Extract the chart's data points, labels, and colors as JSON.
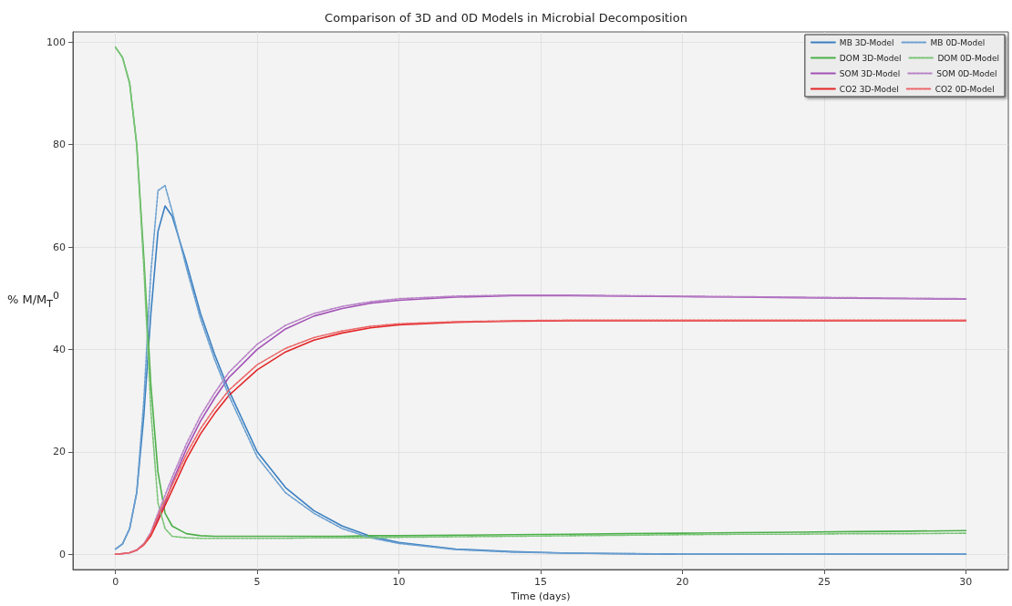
{
  "chart_data": {
    "type": "line",
    "title": "Comparison of 3D and 0D Models in Microbial Decomposition",
    "xlabel": "Time (days)",
    "ylabel": "% M/M$_{T}$$^{0}$",
    "x": [
      0,
      0.25,
      0.5,
      0.75,
      1,
      1.25,
      1.5,
      1.75,
      2,
      2.5,
      3,
      3.5,
      4,
      5,
      6,
      7,
      8,
      9,
      10,
      12,
      14,
      16,
      18,
      20,
      22,
      24,
      26,
      28,
      30
    ],
    "xlim": [
      -1.5,
      31.5
    ],
    "xticks": [
      0,
      5,
      10,
      15,
      20,
      25,
      30
    ],
    "ylim": [
      -3,
      102
    ],
    "yticks": [
      0,
      20,
      40,
      60,
      80,
      100
    ],
    "grid": true,
    "legend": "top right",
    "marker": "none",
    "series": [
      {
        "name": "MB 3D-Model",
        "color": "#3a7fc1",
        "line_style": "solid",
        "values": [
          1,
          2,
          5,
          12,
          27,
          47,
          63,
          68,
          66,
          57,
          47,
          39,
          32,
          20,
          13,
          8.5,
          5.5,
          3.5,
          2.3,
          1,
          0.5,
          0.2,
          0.1,
          0,
          0,
          0,
          0,
          0,
          0
        ]
      },
      {
        "name": "MB 0D-Model",
        "color": "#6a9fd0",
        "line_style": "dashed",
        "values": [
          1,
          2,
          5,
          12,
          30,
          55,
          71,
          72,
          67,
          56,
          46,
          38,
          31,
          19,
          12,
          8,
          5,
          3.2,
          2.1,
          0.9,
          0.4,
          0.2,
          0.1,
          0,
          0,
          0,
          0,
          0,
          0
        ]
      },
      {
        "name": "DOM 3D-Model",
        "color": "#4daf4a",
        "line_style": "solid",
        "values": [
          99,
          97,
          92,
          80,
          58,
          33,
          16,
          8,
          5.5,
          4,
          3.6,
          3.5,
          3.5,
          3.5,
          3.5,
          3.5,
          3.5,
          3.6,
          3.6,
          3.7,
          3.8,
          3.9,
          4,
          4.1,
          4.2,
          4.3,
          4.4,
          4.5,
          4.6
        ]
      },
      {
        "name": "DOM 0D-Model",
        "color": "#79c476",
        "line_style": "dashed",
        "values": [
          99,
          97,
          92,
          80,
          56,
          28,
          10,
          5,
          3.5,
          3.2,
          3.1,
          3.1,
          3.1,
          3.1,
          3.1,
          3.2,
          3.2,
          3.2,
          3.3,
          3.4,
          3.5,
          3.6,
          3.7,
          3.8,
          3.9,
          3.9,
          4,
          4,
          4.1
        ]
      },
      {
        "name": "SOM 3D-Model",
        "color": "#a252b5",
        "line_style": "solid",
        "values": [
          null,
          null,
          0.3,
          0.8,
          2,
          4,
          7,
          10,
          14,
          20.5,
          26,
          30.5,
          34.5,
          40,
          44,
          46.5,
          48,
          49,
          49.6,
          50.2,
          50.5,
          50.5,
          50.4,
          50.3,
          50.2,
          50.1,
          50,
          49.9,
          49.8
        ]
      },
      {
        "name": "SOM 0D-Model",
        "color": "#b882c6",
        "line_style": "dashed",
        "values": [
          0,
          0.1,
          0.3,
          0.8,
          2,
          4.3,
          8,
          11.5,
          15,
          21.5,
          27,
          31.5,
          35.5,
          41,
          44.7,
          47,
          48.4,
          49.3,
          49.9,
          50.4,
          50.6,
          50.6,
          50.5,
          50.4,
          50.3,
          50.2,
          50.1,
          50,
          49.9
        ]
      },
      {
        "name": "CO2 3D-Model",
        "color": "#e32526",
        "line_style": "solid",
        "values": [
          0,
          0.1,
          0.3,
          0.8,
          1.8,
          3.6,
          6.5,
          9.5,
          12.5,
          18.5,
          23.5,
          27.5,
          31,
          36,
          39.5,
          41.8,
          43.2,
          44.2,
          44.8,
          45.3,
          45.5,
          45.6,
          45.6,
          45.6,
          45.6,
          45.6,
          45.6,
          45.6,
          45.6
        ]
      },
      {
        "name": "CO2 0D-Model",
        "color": "#ec6466",
        "line_style": "dashed",
        "values": [
          0,
          0.1,
          0.3,
          0.8,
          1.9,
          4,
          7.5,
          10.5,
          13.5,
          19.5,
          24.5,
          28.5,
          32,
          37,
          40.2,
          42.3,
          43.6,
          44.5,
          45,
          45.4,
          45.6,
          45.7,
          45.7,
          45.7,
          45.7,
          45.7,
          45.7,
          45.7,
          45.7
        ]
      }
    ]
  }
}
